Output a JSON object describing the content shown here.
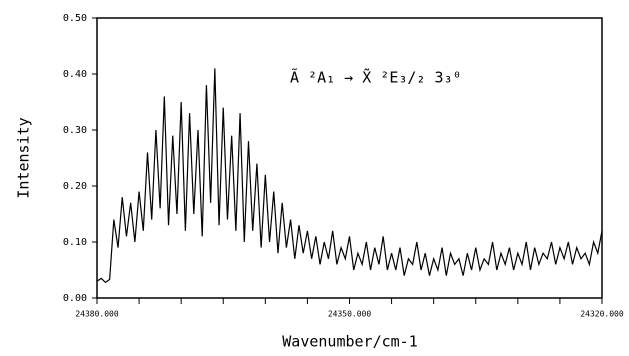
{
  "chart_data": {
    "type": "line",
    "annotation": "Ã ²A₁ → X̃ ²E₃/₂ 3₃⁰",
    "xlabel": "Wavenumber/cm-1",
    "ylabel": "Intensity",
    "xlim": [
      24380,
      24320
    ],
    "ylim": [
      0,
      0.5
    ],
    "xticks": [
      {
        "value": 24380,
        "label": "24380.000"
      },
      {
        "value": 24350,
        "label": "24350.000"
      },
      {
        "value": 24320,
        "label": "24320.000"
      }
    ],
    "xminorticks": [
      24375,
      24370,
      24365,
      24360,
      24355,
      24345,
      24340,
      24335,
      24330,
      24325
    ],
    "yticks": [
      {
        "value": 0,
        "label": "0.00"
      },
      {
        "value": 0.1,
        "label": "0.10"
      },
      {
        "value": 0.2,
        "label": "0.20"
      },
      {
        "value": 0.3,
        "label": "0.30"
      },
      {
        "value": 0.4,
        "label": "0.40"
      },
      {
        "value": 0.5,
        "label": "0.50"
      }
    ],
    "x": [
      24380,
      24379.5,
      24379,
      24378.5,
      24378,
      24377.5,
      24377,
      24376.5,
      24376,
      24375.5,
      24375,
      24374.5,
      24374,
      24373.5,
      24373,
      24372.5,
      24372,
      24371.5,
      24371,
      24370.5,
      24370,
      24369.5,
      24369,
      24368.5,
      24368,
      24367.5,
      24367,
      24366.5,
      24366,
      24365.5,
      24365,
      24364.5,
      24364,
      24363.5,
      24363,
      24362.5,
      24362,
      24361.5,
      24361,
      24360.5,
      24360,
      24359.5,
      24359,
      24358.5,
      24358,
      24357.5,
      24357,
      24356.5,
      24356,
      24355.5,
      24355,
      24354.5,
      24354,
      24353.5,
      24353,
      24352.5,
      24352,
      24351.5,
      24351,
      24350.5,
      24350,
      24349.5,
      24349,
      24348.5,
      24348,
      24347.5,
      24347,
      24346.5,
      24346,
      24345.5,
      24345,
      24344.5,
      24344,
      24343.5,
      24343,
      24342.5,
      24342,
      24341.5,
      24341,
      24340.5,
      24340,
      24339.5,
      24339,
      24338.5,
      24338,
      24337.5,
      24337,
      24336.5,
      24336,
      24335.5,
      24335,
      24334.5,
      24334,
      24333.5,
      24333,
      24332.5,
      24332,
      24331.5,
      24331,
      24330.5,
      24330,
      24329.5,
      24329,
      24328.5,
      24328,
      24327.5,
      24327,
      24326.5,
      24326,
      24325.5,
      24325,
      24324.5,
      24324,
      24323.5,
      24323,
      24322.5,
      24322,
      24321.5,
      24321,
      24320.5,
      24320
    ],
    "series": [
      {
        "color": "#000000",
        "values": [
          0.03,
          0.035,
          0.028,
          0.033,
          0.14,
          0.09,
          0.18,
          0.11,
          0.17,
          0.1,
          0.19,
          0.12,
          0.26,
          0.14,
          0.3,
          0.16,
          0.36,
          0.13,
          0.29,
          0.15,
          0.35,
          0.12,
          0.33,
          0.15,
          0.3,
          0.11,
          0.38,
          0.17,
          0.41,
          0.13,
          0.34,
          0.14,
          0.29,
          0.12,
          0.33,
          0.1,
          0.28,
          0.12,
          0.24,
          0.09,
          0.22,
          0.1,
          0.19,
          0.08,
          0.17,
          0.09,
          0.14,
          0.07,
          0.13,
          0.08,
          0.12,
          0.07,
          0.11,
          0.06,
          0.1,
          0.07,
          0.12,
          0.06,
          0.09,
          0.07,
          0.11,
          0.05,
          0.08,
          0.06,
          0.1,
          0.05,
          0.09,
          0.06,
          0.11,
          0.05,
          0.08,
          0.05,
          0.09,
          0.04,
          0.07,
          0.06,
          0.1,
          0.05,
          0.08,
          0.04,
          0.07,
          0.05,
          0.09,
          0.04,
          0.08,
          0.06,
          0.07,
          0.04,
          0.08,
          0.05,
          0.09,
          0.05,
          0.07,
          0.06,
          0.1,
          0.05,
          0.08,
          0.06,
          0.09,
          0.05,
          0.08,
          0.06,
          0.1,
          0.05,
          0.09,
          0.06,
          0.08,
          0.07,
          0.1,
          0.06,
          0.09,
          0.07,
          0.1,
          0.06,
          0.09,
          0.07,
          0.08,
          0.06,
          0.1,
          0.08,
          0.12
        ]
      }
    ]
  }
}
